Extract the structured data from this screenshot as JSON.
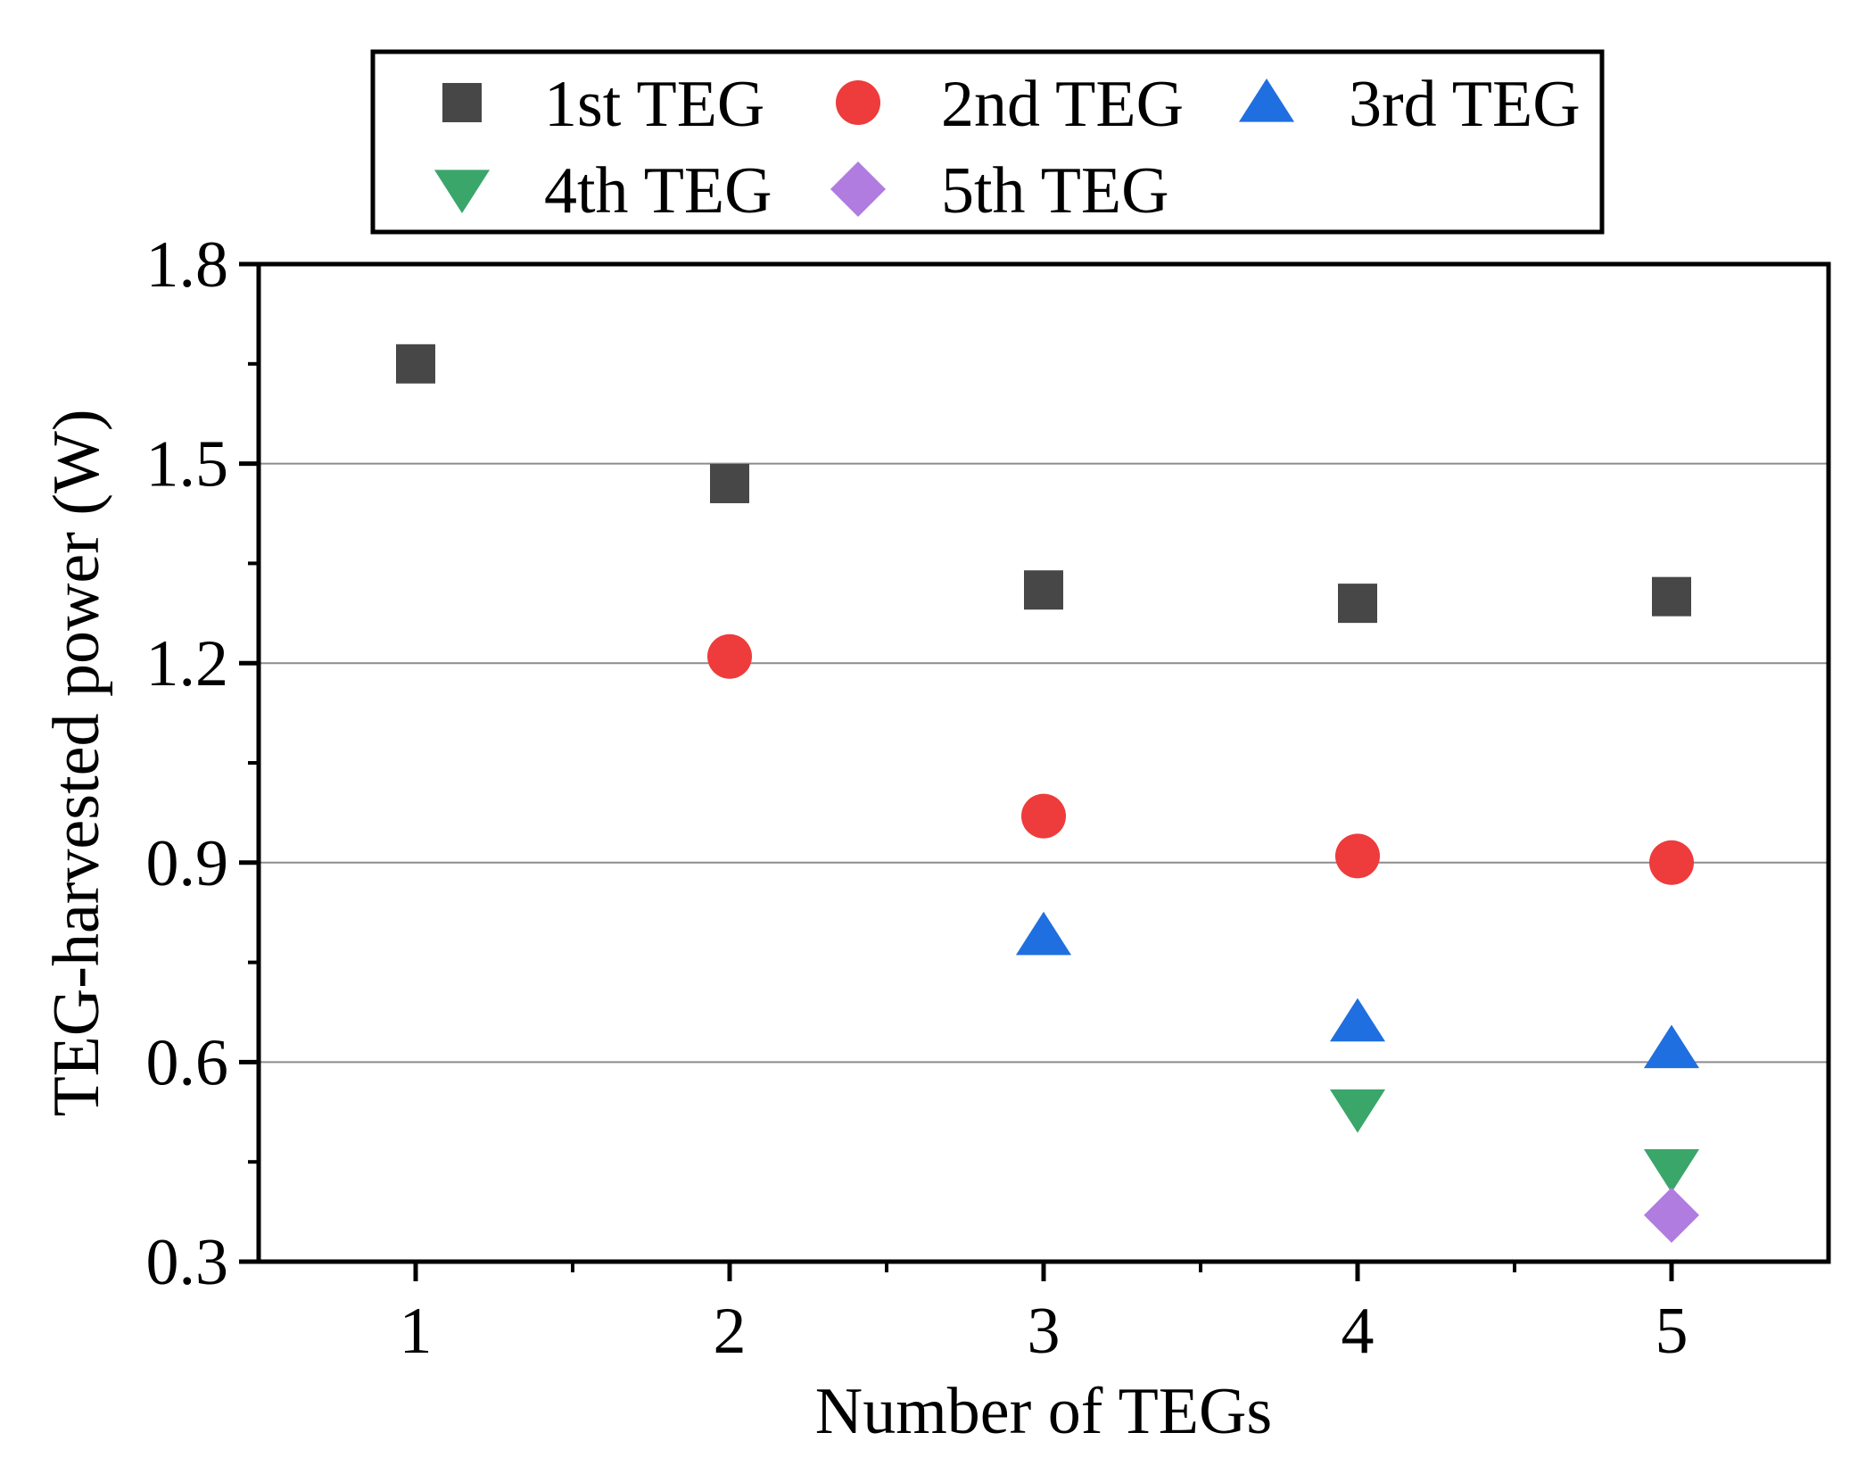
{
  "chart_data": {
    "type": "scatter",
    "title": "",
    "xlabel": "Number of TEGs",
    "ylabel": "TEG-harvested power (W)",
    "x": [
      1,
      2,
      3,
      4,
      5
    ],
    "xlim": [
      0.5,
      5.5
    ],
    "ylim": [
      0.3,
      1.8
    ],
    "xticks": [
      "1",
      "2",
      "3",
      "4",
      "5"
    ],
    "yticks": [
      "0.3",
      "0.6",
      "0.9",
      "1.2",
      "1.5",
      "1.8"
    ],
    "grid": "horizontal",
    "legend_position": "top",
    "series": [
      {
        "name": "1st TEG",
        "marker": "square",
        "color": "#474747",
        "x": [
          1,
          2,
          3,
          4,
          5
        ],
        "values": [
          1.65,
          1.47,
          1.31,
          1.29,
          1.3
        ]
      },
      {
        "name": "2nd TEG",
        "marker": "circle",
        "color": "#ee3b3b",
        "x": [
          2,
          3,
          4,
          5
        ],
        "values": [
          1.21,
          0.97,
          0.91,
          0.9
        ]
      },
      {
        "name": "3rd TEG",
        "marker": "triangle-up",
        "color": "#1f6fe0",
        "x": [
          3,
          4,
          5
        ],
        "values": [
          0.79,
          0.66,
          0.62
        ]
      },
      {
        "name": "4th TEG",
        "marker": "triangle-down",
        "color": "#3aa66a",
        "x": [
          4,
          5
        ],
        "values": [
          0.53,
          0.44
        ]
      },
      {
        "name": "5th TEG",
        "marker": "diamond",
        "color": "#b07ce0",
        "x": [
          5
        ],
        "values": [
          0.37
        ]
      }
    ]
  }
}
